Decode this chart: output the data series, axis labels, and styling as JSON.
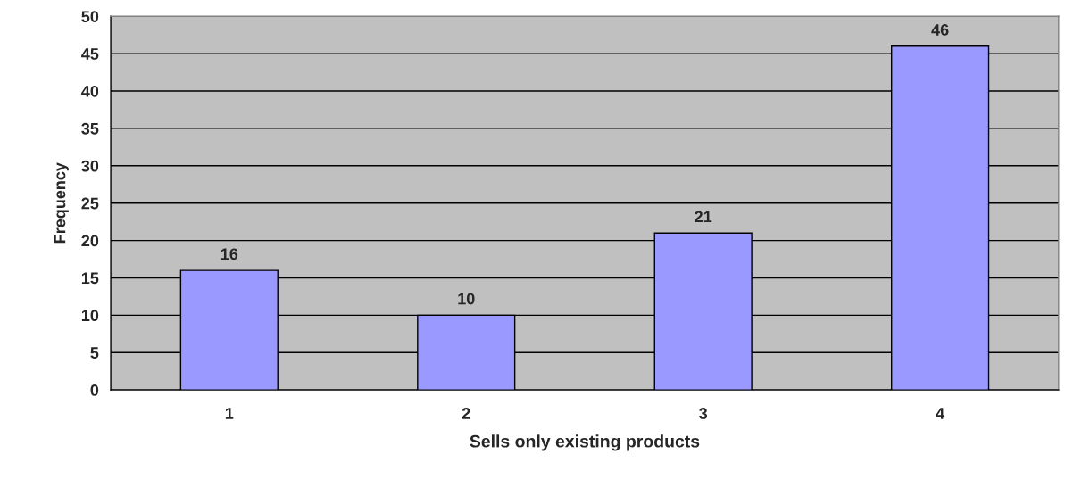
{
  "chart_data": {
    "type": "bar",
    "xlabel": "Sells only existing products",
    "ylabel": "Frequency",
    "categories": [
      "1",
      "2",
      "3",
      "4"
    ],
    "values": [
      16,
      10,
      21,
      46
    ],
    "color": "#9999ff",
    "ylim": [
      0,
      50
    ],
    "yticks": [
      0,
      5,
      10,
      15,
      20,
      25,
      30,
      35,
      40,
      45,
      50
    ],
    "grid": "y",
    "data_labels": true,
    "legend": false
  }
}
